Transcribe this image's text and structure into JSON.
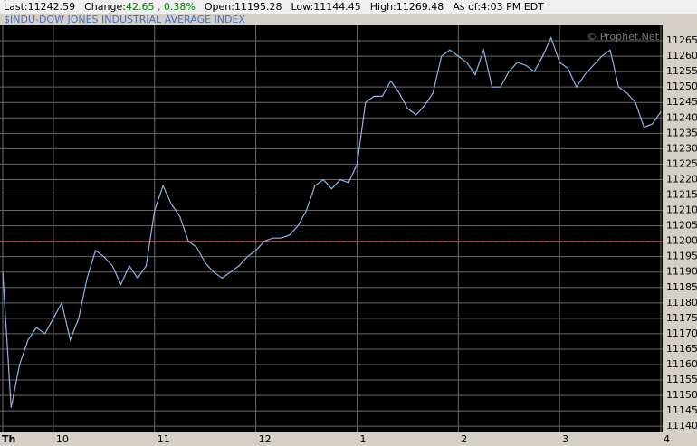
{
  "header": {
    "items": [
      {
        "label": "Last:",
        "value": "11242.59"
      },
      {
        "label": "Change:",
        "value": "42.65 , 0.38%"
      },
      {
        "label": "Open:",
        "value": "11195.28"
      },
      {
        "label": "Low:",
        "value": "11144.45"
      },
      {
        "label": "High:",
        "value": "11269.48"
      },
      {
        "label": "As of:",
        "value": "4:03 PM EDT"
      }
    ]
  },
  "chart_data": {
    "type": "line",
    "title": "$INDU-DOW JONES INDUSTRIAL AVERAGE INDEX",
    "watermark": "© Prophet.Net",
    "color": "#8db4e6",
    "reference_line": 11199.94,
    "reference_color": "#e03030",
    "x": [
      570,
      575,
      580,
      585,
      590,
      595,
      600,
      605,
      610,
      615,
      620,
      625,
      630,
      635,
      640,
      645,
      650,
      655,
      660,
      665,
      670,
      675,
      680,
      685,
      690,
      695,
      700,
      705,
      710,
      715,
      720,
      725,
      730,
      735,
      740,
      745,
      750,
      755,
      760,
      765,
      770,
      775,
      780,
      785,
      790,
      795,
      800,
      805,
      810,
      815,
      820,
      825,
      830,
      835,
      840,
      845,
      850,
      855,
      860,
      865,
      870,
      875,
      880,
      885,
      890,
      895,
      900,
      905,
      910,
      915,
      920,
      925,
      930,
      935,
      940,
      945,
      950,
      955,
      960
    ],
    "values": [
      11190,
      11146,
      11160,
      11168,
      11172,
      11170,
      11175,
      11180,
      11168,
      11175,
      11188,
      11197,
      11195,
      11192,
      11186,
      11192,
      11188,
      11192,
      11210,
      11218,
      11212,
      11208,
      11200,
      11198,
      11193,
      11190,
      11188,
      11190,
      11192,
      11195,
      11197,
      11200,
      11201,
      11201,
      11202,
      11205,
      11210,
      11218,
      11220,
      11217,
      11220,
      11219,
      11225,
      11245,
      11247,
      11247,
      11252,
      11248,
      11243,
      11241,
      11244,
      11248,
      11260,
      11262,
      11260,
      11258,
      11254,
      11262,
      11250,
      11250,
      11255,
      11258,
      11257,
      11255,
      11260,
      11266,
      11258,
      11256,
      11250,
      11254,
      11257,
      11260,
      11262,
      11250,
      11248,
      11245,
      11237,
      11238,
      11242
    ],
    "xlim": [
      570,
      960
    ],
    "xticks": [
      {
        "value": 570,
        "label": "Th"
      },
      {
        "value": 600,
        "label": "10"
      },
      {
        "value": 660,
        "label": "11"
      },
      {
        "value": 720,
        "label": "12"
      },
      {
        "value": 780,
        "label": "1"
      },
      {
        "value": 840,
        "label": "2"
      },
      {
        "value": 900,
        "label": "3"
      },
      {
        "value": 960,
        "label": "4"
      }
    ],
    "ylim": [
      11138,
      11270
    ],
    "yticks": [
      11140,
      11145,
      11150,
      11155,
      11160,
      11165,
      11170,
      11175,
      11180,
      11185,
      11190,
      11195,
      11200,
      11205,
      11210,
      11215,
      11220,
      11225,
      11230,
      11235,
      11240,
      11245,
      11250,
      11255,
      11260,
      11265
    ],
    "grid": true
  }
}
